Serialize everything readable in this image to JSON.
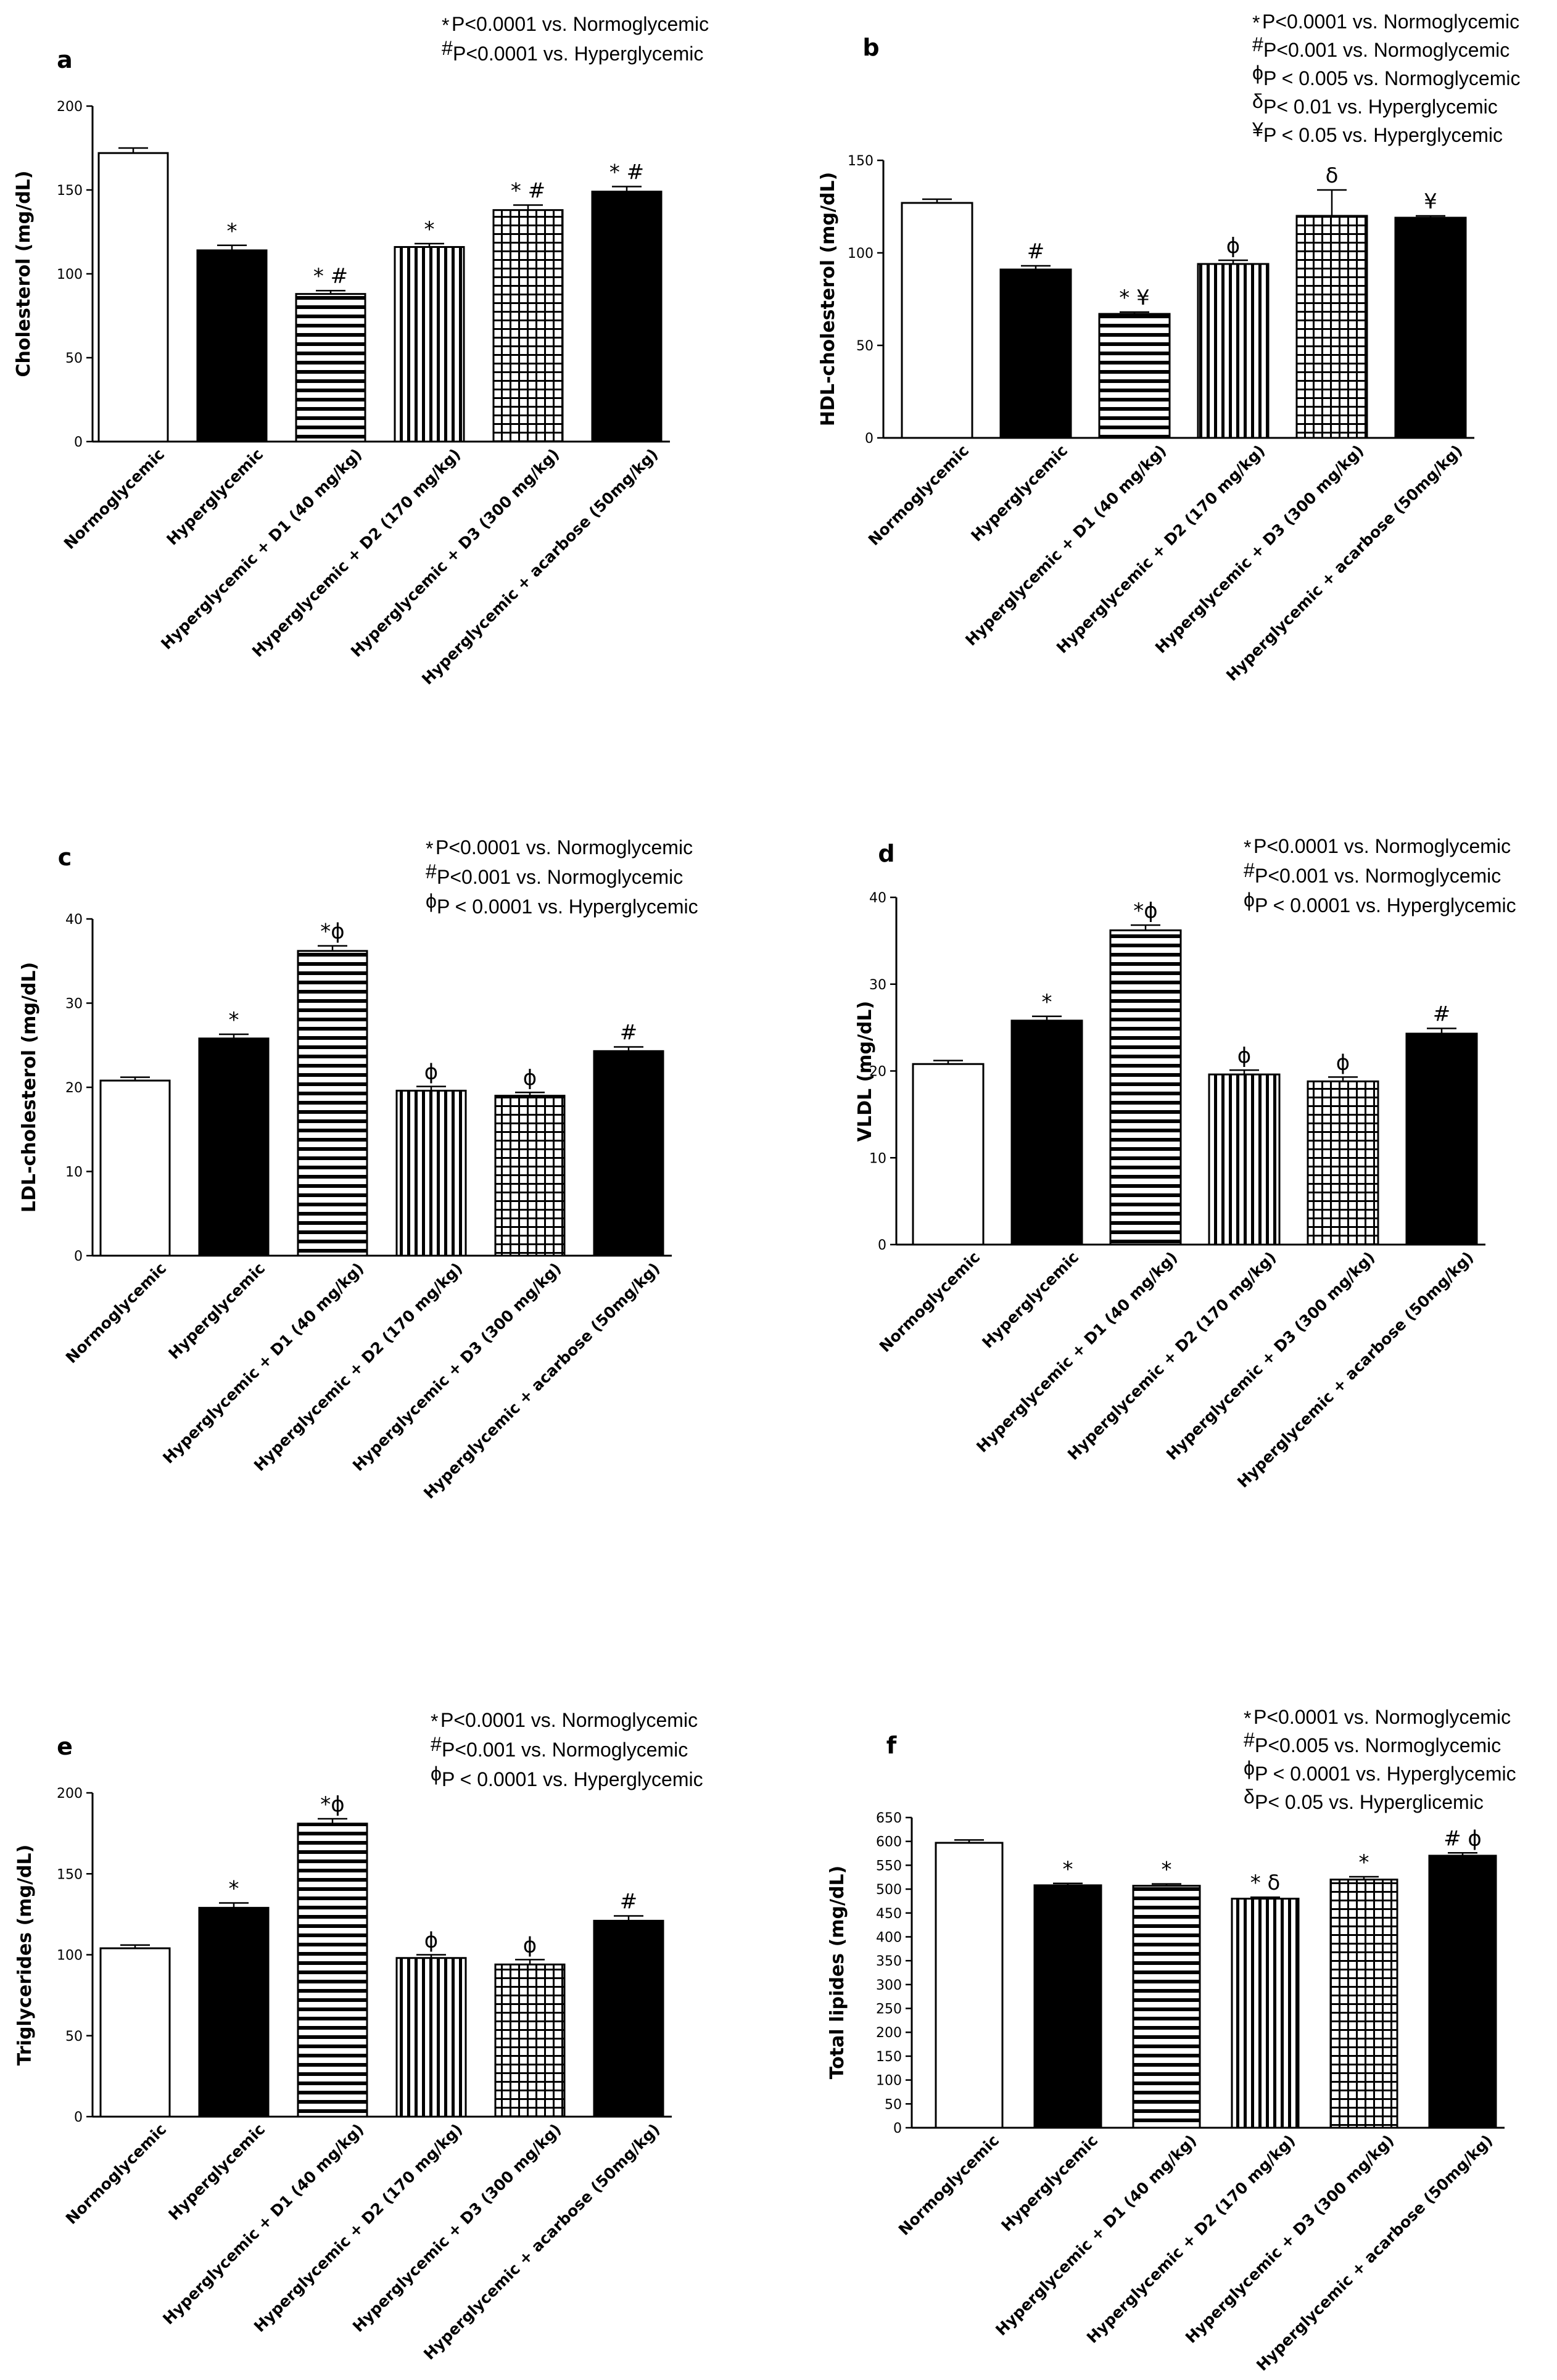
{
  "figure": {
    "categories": [
      "Normoglycemic",
      "Hyperglycemic",
      "Hyperglycemic + D1 (40 mg/kg)",
      "Hyperglycemic + D2 (170 mg/kg)",
      "Hyperglycemic + D3  (300 mg/kg)",
      "Hyperglycemic + acarbose (50mg/kg)"
    ],
    "bar_fills": [
      "white",
      "black",
      "hstripes",
      "vstripes",
      "grid",
      "black"
    ]
  },
  "chart_data": [
    {
      "panel": "a",
      "type": "bar",
      "ylabel": "Cholesterol (mg/dL)",
      "ylim": [
        0,
        200
      ],
      "yticks": [
        0,
        50,
        100,
        150,
        200
      ],
      "values": [
        172,
        114,
        88,
        116,
        138,
        149
      ],
      "errors": [
        3,
        3,
        2,
        2,
        3,
        3
      ],
      "markers": [
        "",
        "*",
        "* #",
        "*",
        "* #",
        "* #"
      ],
      "legend": [
        {
          "sym": "*",
          "text": "P<0.0001 vs. Normoglycemic"
        },
        {
          "sym": "#",
          "text": "P<0.0001 vs. Hyperglycemic"
        }
      ]
    },
    {
      "panel": "b",
      "type": "bar",
      "ylabel": "HDL-cholesterol (mg/dL)",
      "ylim": [
        0,
        150
      ],
      "yticks": [
        0,
        50,
        100,
        150
      ],
      "values": [
        127,
        91,
        67,
        94,
        120,
        119
      ],
      "errors": [
        2,
        2,
        1,
        2,
        14,
        1
      ],
      "markers": [
        "",
        "#",
        "* ¥",
        "ϕ",
        "δ",
        "¥"
      ],
      "legend": [
        {
          "sym": "*",
          "text": "P<0.0001 vs. Normoglycemic"
        },
        {
          "sym": "#",
          "text": "P<0.001 vs. Normoglycemic"
        },
        {
          "sym": "ϕ",
          "text": "P < 0.005 vs. Normoglycemic"
        },
        {
          "sym": "δ",
          "text": "P< 0.01 vs. Hyperglycemic"
        },
        {
          "sym": "¥",
          "text": "P < 0.05 vs. Hyperglycemic"
        }
      ]
    },
    {
      "panel": "c",
      "type": "bar",
      "ylabel": "LDL-cholesterol (mg/dL)",
      "ylim": [
        0,
        40
      ],
      "yticks": [
        0,
        10,
        20,
        30,
        40
      ],
      "values": [
        20.8,
        25.8,
        36.2,
        19.6,
        19.0,
        24.3
      ],
      "errors": [
        0.4,
        0.5,
        0.6,
        0.5,
        0.4,
        0.5
      ],
      "markers": [
        "",
        "*",
        "*ϕ",
        "ϕ",
        "ϕ",
        "#"
      ],
      "legend": [
        {
          "sym": "*",
          "text": "P<0.0001 vs. Normoglycemic"
        },
        {
          "sym": "#",
          "text": "P<0.001 vs. Normoglycemic"
        },
        {
          "sym": "ϕ",
          "text": "P < 0.0001 vs. Hyperglycemic"
        }
      ]
    },
    {
      "panel": "d",
      "type": "bar",
      "ylabel": "VLDL (mg/dL)",
      "ylim": [
        0,
        40
      ],
      "yticks": [
        0,
        10,
        20,
        30,
        40
      ],
      "values": [
        20.8,
        25.8,
        36.2,
        19.6,
        18.8,
        24.3
      ],
      "errors": [
        0.4,
        0.5,
        0.6,
        0.5,
        0.5,
        0.6
      ],
      "markers": [
        "",
        "*",
        "*ϕ",
        "ϕ",
        "ϕ",
        "#"
      ],
      "legend": [
        {
          "sym": "*",
          "text": "P<0.0001 vs. Normoglycemic"
        },
        {
          "sym": "#",
          "text": "P<0.001 vs. Normoglycemic"
        },
        {
          "sym": "ϕ",
          "text": "P < 0.0001 vs. Hyperglycemic"
        }
      ]
    },
    {
      "panel": "e",
      "type": "bar",
      "ylabel": "Triglycerides (mg/dL)",
      "ylim": [
        0,
        200
      ],
      "yticks": [
        0,
        50,
        100,
        150,
        200
      ],
      "values": [
        104,
        129,
        181,
        98,
        94,
        121
      ],
      "errors": [
        2,
        3,
        3,
        2,
        3,
        3
      ],
      "markers": [
        "",
        "*",
        "*ϕ",
        "ϕ",
        "ϕ",
        "#"
      ],
      "legend": [
        {
          "sym": "*",
          "text": "P<0.0001 vs. Normoglycemic"
        },
        {
          "sym": "#",
          "text": "P<0.001 vs. Normoglycemic"
        },
        {
          "sym": "ϕ",
          "text": "P < 0.0001 vs. Hyperglycemic"
        }
      ]
    },
    {
      "panel": "f",
      "type": "bar",
      "ylabel": "Total lipides (mg/dL)",
      "ylim": [
        0,
        650
      ],
      "yticks": [
        0,
        50,
        100,
        150,
        200,
        250,
        300,
        350,
        400,
        450,
        500,
        550,
        600,
        650
      ],
      "values": [
        597,
        508,
        507,
        480,
        520,
        570
      ],
      "errors": [
        6,
        4,
        4,
        3,
        6,
        6
      ],
      "markers": [
        "",
        "*",
        "*",
        "* δ",
        "*",
        "# ϕ"
      ],
      "legend": [
        {
          "sym": "*",
          "text": "P<0.0001 vs. Normoglycemic"
        },
        {
          "sym": "#",
          "text": "P<0.005 vs. Normoglycemic"
        },
        {
          "sym": "ϕ",
          "text": "P < 0.0001 vs. Hyperglycemic"
        },
        {
          "sym": "δ",
          "text": "P< 0.05 vs. Hyperglicemic"
        }
      ]
    }
  ]
}
